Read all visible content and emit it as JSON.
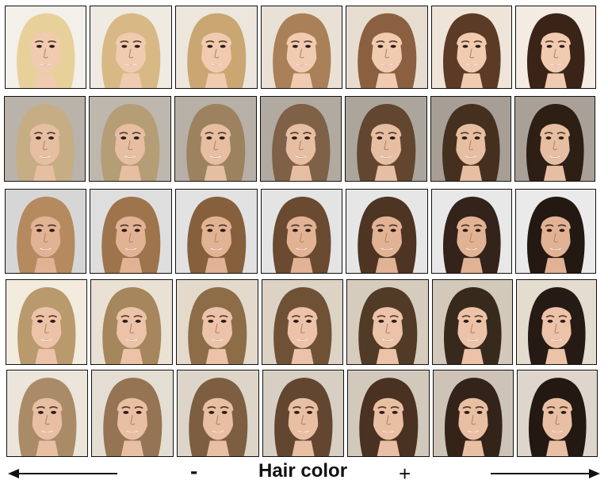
{
  "figure": {
    "axis_label": "Hair color",
    "minus_label": "-",
    "plus_label": "+"
  },
  "rows": [
    {
      "hair": [
        "#e7d09a",
        "#d8b985",
        "#c9a672",
        "#a98058",
        "#8a6040",
        "#5c3b26",
        "#3a2418"
      ],
      "skin": "#f1cbb0",
      "bg": [
        "#f3efe9",
        "#efeae2",
        "#ece6dc",
        "#e9e1d6",
        "#e6ddd0",
        "#efe4d8",
        "#f4ece2"
      ]
    },
    {
      "hair": [
        "#c6ad84",
        "#b59d76",
        "#9d8260",
        "#7e6146",
        "#62462f",
        "#45301f",
        "#2e1f15"
      ],
      "skin": "#e6bea2",
      "bg": [
        "#b9b3aa",
        "#bdb7ae",
        "#b6b0a7",
        "#b0aaa1",
        "#aca59c",
        "#a79f96",
        "#a9a198"
      ]
    },
    {
      "hair": [
        "#b48a5e",
        "#9e744c",
        "#86603d",
        "#6a4a30",
        "#4d3423",
        "#33231a",
        "#231812"
      ],
      "skin": "#e2b294",
      "bg": [
        "#d6d6d6",
        "#dedede",
        "#e2e2e2",
        "#e4e4e4",
        "#e6e6e6",
        "#e8e8e8",
        "#eaeaea"
      ]
    },
    {
      "hair": [
        "#b89a6c",
        "#a6865c",
        "#8d6c48",
        "#6f5236",
        "#513b27",
        "#38291d",
        "#261b14"
      ],
      "skin": "#ecc3a8",
      "bg": [
        "#f2ebde",
        "#e9e1d4",
        "#e3dacc",
        "#ddd3c5",
        "#d6ccbd",
        "#d3c9bb",
        "#e4dccf"
      ]
    },
    {
      "hair": [
        "#a98b67",
        "#957453",
        "#7d5e41",
        "#634630",
        "#4a3222",
        "#342318",
        "#231812"
      ],
      "skin": "#e9bfa4",
      "bg": [
        "#ebe5dc",
        "#e4ddd3",
        "#ddd5ca",
        "#d7cfc3",
        "#d2c9bd",
        "#cdc3b7",
        "#ded6cc"
      ]
    }
  ]
}
